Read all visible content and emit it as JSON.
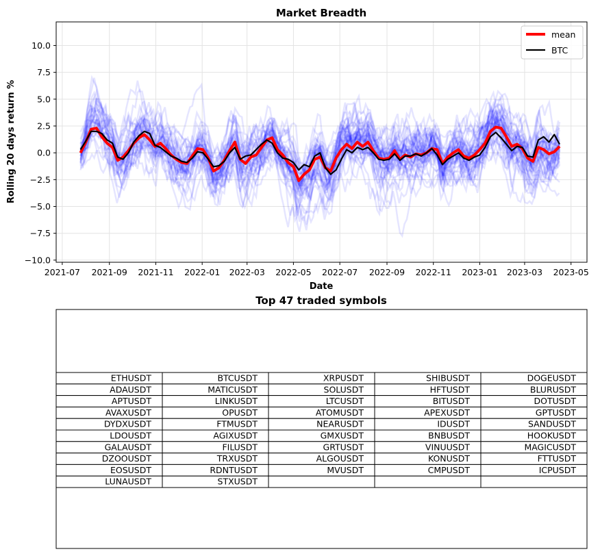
{
  "chart_data": [
    {
      "type": "line",
      "title": "Market Breadth",
      "xlabel": "Date",
      "ylabel": "Rolling 20 days return %",
      "xlim": [
        "2021-06-23",
        "2023-05-22"
      ],
      "ylim": [
        -10.2,
        12.2
      ],
      "x_ticks": [
        "2021-07",
        "2021-09",
        "2021-11",
        "2022-01",
        "2022-03",
        "2022-05",
        "2022-07",
        "2022-09",
        "2022-11",
        "2023-01",
        "2023-03",
        "2023-05"
      ],
      "y_ticks": [
        -10.0,
        -7.5,
        -5.0,
        -2.5,
        0.0,
        2.5,
        5.0,
        7.5,
        10.0
      ],
      "y_tick_labels": [
        "−10.0",
        "−7.5",
        "−5.0",
        "−2.5",
        "0.0",
        "2.5",
        "5.0",
        "7.5",
        "10.0"
      ],
      "grid": true,
      "legend_position": "top-right",
      "series": [
        {
          "name": "mean",
          "color": "#ff0000",
          "points": [
            [
              "2021-07-25",
              0.0
            ],
            [
              "2021-08-01",
              1.0
            ],
            [
              "2021-08-08",
              2.2
            ],
            [
              "2021-08-15",
              2.3
            ],
            [
              "2021-08-22",
              1.5
            ],
            [
              "2021-08-29",
              0.9
            ],
            [
              "2021-09-05",
              0.5
            ],
            [
              "2021-09-12",
              -0.7
            ],
            [
              "2021-09-19",
              -0.4
            ],
            [
              "2021-09-26",
              0.2
            ],
            [
              "2021-10-03",
              0.9
            ],
            [
              "2021-10-10",
              1.4
            ],
            [
              "2021-10-17",
              1.7
            ],
            [
              "2021-10-24",
              1.2
            ],
            [
              "2021-10-31",
              0.6
            ],
            [
              "2021-11-07",
              0.9
            ],
            [
              "2021-11-14",
              0.4
            ],
            [
              "2021-11-21",
              -0.2
            ],
            [
              "2021-11-28",
              -0.6
            ],
            [
              "2021-12-05",
              -0.9
            ],
            [
              "2021-12-12",
              -1.0
            ],
            [
              "2021-12-19",
              -0.3
            ],
            [
              "2021-12-26",
              0.4
            ],
            [
              "2022-01-02",
              0.3
            ],
            [
              "2022-01-09",
              -0.5
            ],
            [
              "2022-01-16",
              -1.7
            ],
            [
              "2022-01-23",
              -1.4
            ],
            [
              "2022-01-30",
              -0.7
            ],
            [
              "2022-02-06",
              0.2
            ],
            [
              "2022-02-13",
              1.0
            ],
            [
              "2022-02-20",
              -0.6
            ],
            [
              "2022-02-27",
              -1.0
            ],
            [
              "2022-03-06",
              -0.4
            ],
            [
              "2022-03-13",
              -0.2
            ],
            [
              "2022-03-20",
              0.5
            ],
            [
              "2022-03-27",
              1.2
            ],
            [
              "2022-04-03",
              1.4
            ],
            [
              "2022-04-10",
              0.3
            ],
            [
              "2022-04-17",
              -0.2
            ],
            [
              "2022-04-24",
              -0.9
            ],
            [
              "2022-05-01",
              -1.3
            ],
            [
              "2022-05-08",
              -2.6
            ],
            [
              "2022-05-15",
              -2.0
            ],
            [
              "2022-05-22",
              -1.6
            ],
            [
              "2022-05-29",
              -0.6
            ],
            [
              "2022-06-05",
              -0.4
            ],
            [
              "2022-06-12",
              -1.4
            ],
            [
              "2022-06-19",
              -1.7
            ],
            [
              "2022-06-26",
              -0.5
            ],
            [
              "2022-07-03",
              0.3
            ],
            [
              "2022-07-10",
              0.8
            ],
            [
              "2022-07-17",
              0.4
            ],
            [
              "2022-07-24",
              1.0
            ],
            [
              "2022-07-31",
              0.6
            ],
            [
              "2022-08-07",
              1.0
            ],
            [
              "2022-08-14",
              0.2
            ],
            [
              "2022-08-21",
              -0.5
            ],
            [
              "2022-08-28",
              -0.6
            ],
            [
              "2022-09-04",
              -0.5
            ],
            [
              "2022-09-11",
              0.2
            ],
            [
              "2022-09-18",
              -0.6
            ],
            [
              "2022-09-25",
              -0.2
            ],
            [
              "2022-10-02",
              -0.4
            ],
            [
              "2022-10-09",
              -0.1
            ],
            [
              "2022-10-16",
              -0.2
            ],
            [
              "2022-10-23",
              0.0
            ],
            [
              "2022-10-30",
              0.4
            ],
            [
              "2022-11-06",
              0.3
            ],
            [
              "2022-11-13",
              -1.0
            ],
            [
              "2022-11-20",
              -0.4
            ],
            [
              "2022-11-27",
              0.0
            ],
            [
              "2022-12-04",
              0.3
            ],
            [
              "2022-12-11",
              -0.3
            ],
            [
              "2022-12-18",
              -0.5
            ],
            [
              "2022-12-25",
              -0.2
            ],
            [
              "2023-01-01",
              0.3
            ],
            [
              "2023-01-08",
              0.9
            ],
            [
              "2023-01-15",
              2.0
            ],
            [
              "2023-01-22",
              2.4
            ],
            [
              "2023-01-29",
              2.3
            ],
            [
              "2023-02-05",
              1.5
            ],
            [
              "2023-02-12",
              0.6
            ],
            [
              "2023-02-19",
              0.8
            ],
            [
              "2023-02-26",
              0.4
            ],
            [
              "2023-03-05",
              -0.5
            ],
            [
              "2023-03-12",
              -0.8
            ],
            [
              "2023-03-19",
              0.5
            ],
            [
              "2023-03-26",
              0.3
            ],
            [
              "2023-04-02",
              -0.1
            ],
            [
              "2023-04-09",
              0.1
            ],
            [
              "2023-04-16",
              0.6
            ]
          ]
        },
        {
          "name": "BTC",
          "color": "#000000",
          "points": [
            [
              "2021-07-25",
              0.3
            ],
            [
              "2021-08-01",
              1.1
            ],
            [
              "2021-08-08",
              2.0
            ],
            [
              "2021-08-15",
              2.0
            ],
            [
              "2021-08-22",
              1.8
            ],
            [
              "2021-08-29",
              1.2
            ],
            [
              "2021-09-05",
              0.9
            ],
            [
              "2021-09-12",
              -0.4
            ],
            [
              "2021-09-19",
              -0.6
            ],
            [
              "2021-09-26",
              0.0
            ],
            [
              "2021-10-03",
              1.0
            ],
            [
              "2021-10-10",
              1.6
            ],
            [
              "2021-10-17",
              2.0
            ],
            [
              "2021-10-24",
              1.8
            ],
            [
              "2021-10-31",
              0.7
            ],
            [
              "2021-11-07",
              0.5
            ],
            [
              "2021-11-14",
              0.1
            ],
            [
              "2021-11-21",
              -0.3
            ],
            [
              "2021-11-28",
              -0.5
            ],
            [
              "2021-12-05",
              -0.8
            ],
            [
              "2021-12-12",
              -0.9
            ],
            [
              "2021-12-19",
              -0.5
            ],
            [
              "2021-12-26",
              0.1
            ],
            [
              "2022-01-02",
              0.0
            ],
            [
              "2022-01-09",
              -0.6
            ],
            [
              "2022-01-16",
              -1.3
            ],
            [
              "2022-01-23",
              -1.2
            ],
            [
              "2022-01-30",
              -0.8
            ],
            [
              "2022-02-06",
              0.0
            ],
            [
              "2022-02-13",
              0.5
            ],
            [
              "2022-02-20",
              -0.6
            ],
            [
              "2022-02-27",
              -0.3
            ],
            [
              "2022-03-06",
              -0.2
            ],
            [
              "2022-03-13",
              0.3
            ],
            [
              "2022-03-20",
              0.8
            ],
            [
              "2022-03-27",
              1.2
            ],
            [
              "2022-04-03",
              0.9
            ],
            [
              "2022-04-10",
              0.0
            ],
            [
              "2022-04-17",
              -0.5
            ],
            [
              "2022-04-24",
              -0.6
            ],
            [
              "2022-05-01",
              -0.9
            ],
            [
              "2022-05-08",
              -1.6
            ],
            [
              "2022-05-15",
              -1.1
            ],
            [
              "2022-05-22",
              -1.3
            ],
            [
              "2022-05-29",
              -0.3
            ],
            [
              "2022-06-05",
              0.0
            ],
            [
              "2022-06-12",
              -1.4
            ],
            [
              "2022-06-19",
              -2.0
            ],
            [
              "2022-06-26",
              -1.6
            ],
            [
              "2022-07-03",
              -0.6
            ],
            [
              "2022-07-10",
              0.3
            ],
            [
              "2022-07-17",
              0.0
            ],
            [
              "2022-07-24",
              0.5
            ],
            [
              "2022-07-31",
              0.3
            ],
            [
              "2022-08-07",
              0.5
            ],
            [
              "2022-08-14",
              0.0
            ],
            [
              "2022-08-21",
              -0.6
            ],
            [
              "2022-08-28",
              -0.7
            ],
            [
              "2022-09-04",
              -0.6
            ],
            [
              "2022-09-11",
              -0.1
            ],
            [
              "2022-09-18",
              -0.7
            ],
            [
              "2022-09-25",
              -0.3
            ],
            [
              "2022-10-02",
              -0.3
            ],
            [
              "2022-10-09",
              -0.1
            ],
            [
              "2022-10-16",
              -0.3
            ],
            [
              "2022-10-23",
              0.0
            ],
            [
              "2022-10-30",
              0.4
            ],
            [
              "2022-11-06",
              -0.2
            ],
            [
              "2022-11-13",
              -1.1
            ],
            [
              "2022-11-20",
              -0.6
            ],
            [
              "2022-11-27",
              -0.3
            ],
            [
              "2022-12-04",
              0.0
            ],
            [
              "2022-12-11",
              -0.5
            ],
            [
              "2022-12-18",
              -0.7
            ],
            [
              "2022-12-25",
              -0.4
            ],
            [
              "2023-01-01",
              -0.2
            ],
            [
              "2023-01-08",
              0.5
            ],
            [
              "2023-01-15",
              1.5
            ],
            [
              "2023-01-22",
              1.9
            ],
            [
              "2023-01-29",
              1.4
            ],
            [
              "2023-02-05",
              0.8
            ],
            [
              "2023-02-12",
              0.2
            ],
            [
              "2023-02-19",
              0.6
            ],
            [
              "2023-02-26",
              0.5
            ],
            [
              "2023-03-05",
              -0.3
            ],
            [
              "2023-03-12",
              -0.4
            ],
            [
              "2023-03-19",
              1.2
            ],
            [
              "2023-03-26",
              1.5
            ],
            [
              "2023-04-02",
              1.0
            ],
            [
              "2023-04-09",
              1.7
            ],
            [
              "2023-04-16",
              0.8
            ]
          ]
        }
      ],
      "background_series_color": "#0000ff"
    },
    {
      "type": "table",
      "title": "Top 47 traded symbols",
      "columns": 5,
      "rows": [
        [
          "ETHUSDT",
          "BTCUSDT",
          "XRPUSDT",
          "SHIBUSDT",
          "DOGEUSDT"
        ],
        [
          "ADAUSDT",
          "MATICUSDT",
          "SOLUSDT",
          "HFTUSDT",
          "BLURUSDT"
        ],
        [
          "APTUSDT",
          "LINKUSDT",
          "LTCUSDT",
          "BITUSDT",
          "DOTUSDT"
        ],
        [
          "AVAXUSDT",
          "OPUSDT",
          "ATOMUSDT",
          "APEXUSDT",
          "GPTUSDT"
        ],
        [
          "DYDXUSDT",
          "FTMUSDT",
          "NEARUSDT",
          "IDUSDT",
          "SANDUSDT"
        ],
        [
          "LDOUSDT",
          "AGIXUSDT",
          "GMXUSDT",
          "BNBUSDT",
          "HOOKUSDT"
        ],
        [
          "GALAUSDT",
          "FILUSDT",
          "GRTUSDT",
          "VINUUSDT",
          "MAGICUSDT"
        ],
        [
          "DZOOUSDT",
          "TRXUSDT",
          "ALGOUSDT",
          "KONUSDT",
          "FTTUSDT"
        ],
        [
          "EOSUSDT",
          "RDNTUSDT",
          "MVUSDT",
          "CMPUSDT",
          "ICPUSDT"
        ],
        [
          "LUNAUSDT",
          "STXUSDT",
          "",
          "",
          ""
        ]
      ]
    }
  ]
}
